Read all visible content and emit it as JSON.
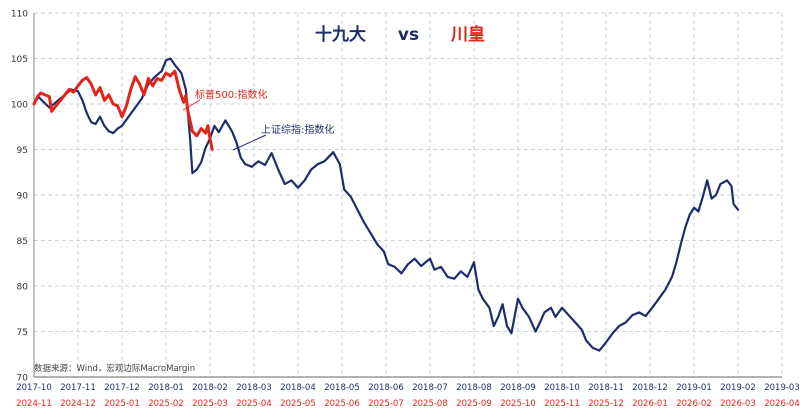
{
  "title": {
    "left": "十九大",
    "vs": "vs",
    "right": "川皇"
  },
  "source": "数据来源：Wind，宏观边际MacroMargin",
  "chart_data": {
    "type": "line",
    "y_ticks": [
      70,
      75,
      80,
      85,
      90,
      95,
      100,
      105,
      110
    ],
    "ylim": [
      70,
      110
    ],
    "grid": true,
    "x_top_labels": [
      "2017-10",
      "2017-11",
      "2017-12",
      "2018-01",
      "2018-02",
      "2018-03",
      "2018-04",
      "2018-05",
      "2018-06",
      "2018-07",
      "2018-08",
      "2018-09",
      "2018-10",
      "2018-11",
      "2018-12",
      "2019-01",
      "2019-02",
      "2019-03"
    ],
    "x_bottom_labels": [
      "2024-11",
      "2024-12",
      "2025-01",
      "2025-02",
      "2025-03",
      "2025-04",
      "2025-05",
      "2025-06",
      "2025-07",
      "2025-08",
      "2025-09",
      "2025-10",
      "2025-11",
      "2025-12",
      "2026-01",
      "2026-02",
      "2026-03",
      "2026-04"
    ],
    "series": [
      {
        "name": "上证综指:指数化",
        "color": "#1f2d6b",
        "points": [
          [
            0.0,
            100.0
          ],
          [
            0.1,
            100.8
          ],
          [
            0.2,
            100.3
          ],
          [
            0.35,
            99.6
          ],
          [
            0.5,
            100.2
          ],
          [
            0.7,
            101.0
          ],
          [
            0.85,
            101.6
          ],
          [
            1.0,
            101.4
          ],
          [
            1.1,
            100.4
          ],
          [
            1.2,
            99.0
          ],
          [
            1.3,
            98.0
          ],
          [
            1.4,
            97.8
          ],
          [
            1.5,
            98.6
          ],
          [
            1.6,
            97.6
          ],
          [
            1.7,
            97.0
          ],
          [
            1.8,
            96.8
          ],
          [
            1.9,
            97.3
          ],
          [
            2.0,
            97.6
          ],
          [
            2.15,
            98.6
          ],
          [
            2.3,
            99.6
          ],
          [
            2.45,
            100.6
          ],
          [
            2.6,
            102.2
          ],
          [
            2.75,
            103.0
          ],
          [
            2.9,
            103.6
          ],
          [
            3.0,
            104.8
          ],
          [
            3.1,
            105.0
          ],
          [
            3.2,
            104.3
          ],
          [
            3.35,
            103.4
          ],
          [
            3.45,
            101.6
          ],
          [
            3.5,
            99.0
          ],
          [
            3.55,
            96.0
          ],
          [
            3.6,
            92.4
          ],
          [
            3.7,
            92.8
          ],
          [
            3.8,
            93.6
          ],
          [
            3.9,
            95.2
          ],
          [
            4.0,
            96.2
          ],
          [
            4.1,
            97.6
          ],
          [
            4.2,
            96.9
          ],
          [
            4.35,
            98.2
          ],
          [
            4.5,
            97.0
          ],
          [
            4.6,
            95.8
          ],
          [
            4.7,
            94.1
          ],
          [
            4.8,
            93.4
          ],
          [
            4.95,
            93.1
          ],
          [
            5.1,
            93.7
          ],
          [
            5.25,
            93.3
          ],
          [
            5.4,
            94.6
          ],
          [
            5.55,
            92.8
          ],
          [
            5.7,
            91.2
          ],
          [
            5.85,
            91.6
          ],
          [
            6.0,
            90.8
          ],
          [
            6.15,
            91.6
          ],
          [
            6.3,
            92.8
          ],
          [
            6.45,
            93.4
          ],
          [
            6.6,
            93.7
          ],
          [
            6.8,
            94.7
          ],
          [
            6.95,
            93.4
          ],
          [
            7.05,
            90.6
          ],
          [
            7.2,
            89.8
          ],
          [
            7.35,
            88.4
          ],
          [
            7.5,
            87.0
          ],
          [
            7.65,
            85.8
          ],
          [
            7.8,
            84.6
          ],
          [
            7.95,
            83.8
          ],
          [
            8.05,
            82.4
          ],
          [
            8.2,
            82.1
          ],
          [
            8.35,
            81.4
          ],
          [
            8.5,
            82.4
          ],
          [
            8.65,
            83.0
          ],
          [
            8.8,
            82.2
          ],
          [
            9.0,
            83.0
          ],
          [
            9.1,
            81.8
          ],
          [
            9.25,
            82.1
          ],
          [
            9.4,
            81.0
          ],
          [
            9.55,
            80.8
          ],
          [
            9.7,
            81.6
          ],
          [
            9.85,
            81.0
          ],
          [
            10.0,
            82.6
          ],
          [
            10.1,
            79.6
          ],
          [
            10.2,
            78.6
          ],
          [
            10.35,
            77.6
          ],
          [
            10.45,
            75.6
          ],
          [
            10.55,
            76.6
          ],
          [
            10.65,
            78.0
          ],
          [
            10.75,
            75.6
          ],
          [
            10.85,
            74.8
          ],
          [
            11.0,
            78.6
          ],
          [
            11.1,
            77.6
          ],
          [
            11.25,
            76.6
          ],
          [
            11.4,
            75.0
          ],
          [
            11.5,
            76.0
          ],
          [
            11.6,
            77.1
          ],
          [
            11.75,
            77.6
          ],
          [
            11.85,
            76.6
          ],
          [
            12.0,
            77.6
          ],
          [
            12.15,
            76.8
          ],
          [
            12.3,
            76.0
          ],
          [
            12.45,
            75.2
          ],
          [
            12.55,
            74.0
          ],
          [
            12.7,
            73.2
          ],
          [
            12.85,
            72.9
          ],
          [
            13.0,
            73.8
          ],
          [
            13.15,
            74.8
          ],
          [
            13.3,
            75.6
          ],
          [
            13.45,
            76.0
          ],
          [
            13.6,
            76.8
          ],
          [
            13.75,
            77.1
          ],
          [
            13.9,
            76.7
          ],
          [
            14.05,
            77.6
          ],
          [
            14.2,
            78.6
          ],
          [
            14.35,
            79.6
          ],
          [
            14.5,
            81.0
          ],
          [
            14.6,
            82.6
          ],
          [
            14.7,
            84.6
          ],
          [
            14.8,
            86.4
          ],
          [
            14.9,
            87.8
          ],
          [
            15.0,
            88.6
          ],
          [
            15.1,
            88.2
          ],
          [
            15.2,
            89.8
          ],
          [
            15.3,
            91.6
          ],
          [
            15.4,
            89.6
          ],
          [
            15.5,
            90.0
          ],
          [
            15.6,
            91.2
          ],
          [
            15.75,
            91.6
          ],
          [
            15.85,
            91.0
          ],
          [
            15.9,
            89.0
          ],
          [
            16.0,
            88.4
          ]
        ]
      },
      {
        "name": "标普500:指数化",
        "color": "#e0251b",
        "points": [
          [
            0.0,
            100.0
          ],
          [
            0.08,
            100.8
          ],
          [
            0.15,
            101.2
          ],
          [
            0.25,
            101.0
          ],
          [
            0.35,
            100.8
          ],
          [
            0.4,
            99.2
          ],
          [
            0.5,
            99.8
          ],
          [
            0.6,
            100.4
          ],
          [
            0.7,
            101.0
          ],
          [
            0.8,
            101.6
          ],
          [
            0.9,
            101.3
          ],
          [
            1.0,
            102.0
          ],
          [
            1.1,
            102.6
          ],
          [
            1.2,
            102.9
          ],
          [
            1.3,
            102.2
          ],
          [
            1.4,
            101.0
          ],
          [
            1.5,
            101.8
          ],
          [
            1.6,
            100.4
          ],
          [
            1.7,
            101.0
          ],
          [
            1.8,
            100.0
          ],
          [
            1.9,
            99.8
          ],
          [
            2.0,
            98.6
          ],
          [
            2.1,
            99.8
          ],
          [
            2.2,
            101.6
          ],
          [
            2.3,
            103.0
          ],
          [
            2.4,
            102.2
          ],
          [
            2.5,
            101.0
          ],
          [
            2.6,
            102.8
          ],
          [
            2.7,
            102.0
          ],
          [
            2.8,
            102.8
          ],
          [
            2.9,
            102.6
          ],
          [
            3.0,
            103.4
          ],
          [
            3.1,
            103.1
          ],
          [
            3.2,
            103.6
          ],
          [
            3.3,
            101.6
          ],
          [
            3.4,
            100.2
          ],
          [
            3.45,
            100.9
          ],
          [
            3.5,
            99.2
          ],
          [
            3.6,
            97.0
          ],
          [
            3.7,
            96.5
          ],
          [
            3.8,
            97.3
          ],
          [
            3.9,
            96.8
          ],
          [
            3.95,
            97.6
          ],
          [
            4.0,
            96.2
          ],
          [
            4.05,
            95.0
          ]
        ]
      }
    ],
    "annotations": [
      {
        "text": "标普500:指数化",
        "color": "#e0251b"
      },
      {
        "text": "上证综指:指数化",
        "color": "#1f2d6b"
      }
    ]
  }
}
